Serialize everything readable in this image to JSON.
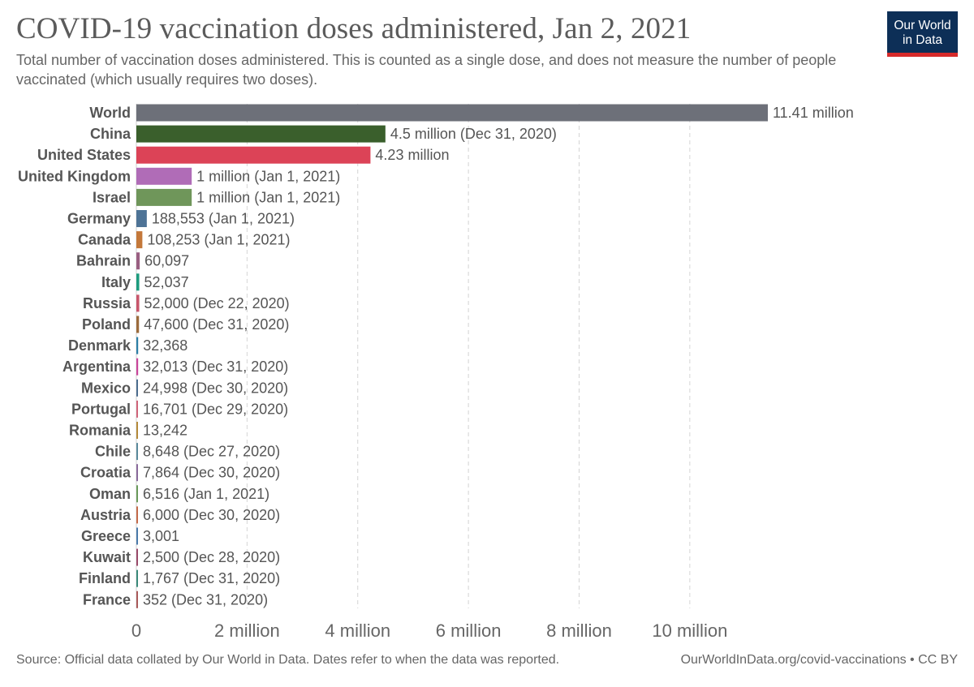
{
  "header": {
    "title": "COVID-19 vaccination doses administered, Jan 2, 2021",
    "subtitle": "Total number of vaccination doses administered. This is counted as a single dose, and does not measure the number of people vaccinated (which usually requires two doses).",
    "logo_line1": "Our World",
    "logo_line2": "in Data"
  },
  "footer": {
    "source": "Source: Official data collated by Our World in Data. Dates refer to when the data was reported.",
    "link": "OurWorldInData.org/covid-vaccinations • CC BY"
  },
  "colors": {
    "logo_bg": "#0d2f57",
    "logo_accent": "#d72a2a",
    "gridline": "#d4d4d4"
  },
  "chart_data": {
    "type": "bar",
    "orientation": "horizontal",
    "title": "COVID-19 vaccination doses administered, Jan 2, 2021",
    "xlabel": "",
    "ylabel": "",
    "xlim": [
      0,
      11410000
    ],
    "grid": true,
    "xticks": [
      {
        "value": 0,
        "label": "0"
      },
      {
        "value": 2000000,
        "label": "2 million"
      },
      {
        "value": 4000000,
        "label": "4 million"
      },
      {
        "value": 6000000,
        "label": "6 million"
      },
      {
        "value": 8000000,
        "label": "8 million"
      },
      {
        "value": 10000000,
        "label": "10 million"
      }
    ],
    "bars": [
      {
        "country": "World",
        "value": 11410000,
        "label": "11.41 million",
        "color": "#6d7079"
      },
      {
        "country": "China",
        "value": 4500000,
        "label": "4.5 million (Dec 31, 2020)",
        "color": "#3a5f2c"
      },
      {
        "country": "United States",
        "value": 4230000,
        "label": "4.23 million",
        "color": "#dc4357"
      },
      {
        "country": "United Kingdom",
        "value": 1000000,
        "label": "1 million (Jan 1, 2021)",
        "color": "#b06cb7"
      },
      {
        "country": "Israel",
        "value": 1000000,
        "label": "1 million (Jan 1, 2021)",
        "color": "#6f965a"
      },
      {
        "country": "Germany",
        "value": 188553,
        "label": "188,553 (Jan 1, 2021)",
        "color": "#4e7396"
      },
      {
        "country": "Canada",
        "value": 108253,
        "label": "108,253 (Jan 1, 2021)",
        "color": "#c4783a"
      },
      {
        "country": "Bahrain",
        "value": 60097,
        "label": "60,097",
        "color": "#9a5f82"
      },
      {
        "country": "Italy",
        "value": 52037,
        "label": "52,037",
        "color": "#1d9c7e"
      },
      {
        "country": "Russia",
        "value": 52000,
        "label": "52,000 (Dec 22, 2020)",
        "color": "#c8566b"
      },
      {
        "country": "Poland",
        "value": 47600,
        "label": "47,600 (Dec 31, 2020)",
        "color": "#9b6b3c"
      },
      {
        "country": "Denmark",
        "value": 32368,
        "label": "32,368",
        "color": "#2c7fa6"
      },
      {
        "country": "Argentina",
        "value": 32013,
        "label": "32,013 (Dec 31, 2020)",
        "color": "#c9469b"
      },
      {
        "country": "Mexico",
        "value": 24998,
        "label": "24,998 (Dec 30, 2020)",
        "color": "#4c6d8f"
      },
      {
        "country": "Portugal",
        "value": 16701,
        "label": "16,701 (Dec 29, 2020)",
        "color": "#d0647a"
      },
      {
        "country": "Romania",
        "value": 13242,
        "label": "13,242",
        "color": "#b48a3a"
      },
      {
        "country": "Chile",
        "value": 8648,
        "label": "8,648 (Dec 27, 2020)",
        "color": "#5a8a9c"
      },
      {
        "country": "Croatia",
        "value": 7864,
        "label": "7,864 (Dec 30, 2020)",
        "color": "#8a6a9c"
      },
      {
        "country": "Oman",
        "value": 6516,
        "label": "6,516 (Jan 1, 2021)",
        "color": "#6a9a5a"
      },
      {
        "country": "Austria",
        "value": 6000,
        "label": "6,000 (Dec 30, 2020)",
        "color": "#c46a4a"
      },
      {
        "country": "Greece",
        "value": 3001,
        "label": "3,001",
        "color": "#4a7aaa"
      },
      {
        "country": "Kuwait",
        "value": 2500,
        "label": "2,500 (Dec 28, 2020)",
        "color": "#9a4a6a"
      },
      {
        "country": "Finland",
        "value": 1767,
        "label": "1,767 (Dec 31, 2020)",
        "color": "#3a8a7a"
      },
      {
        "country": "France",
        "value": 352,
        "label": "352 (Dec 31, 2020)",
        "color": "#aa5a5a"
      }
    ]
  }
}
